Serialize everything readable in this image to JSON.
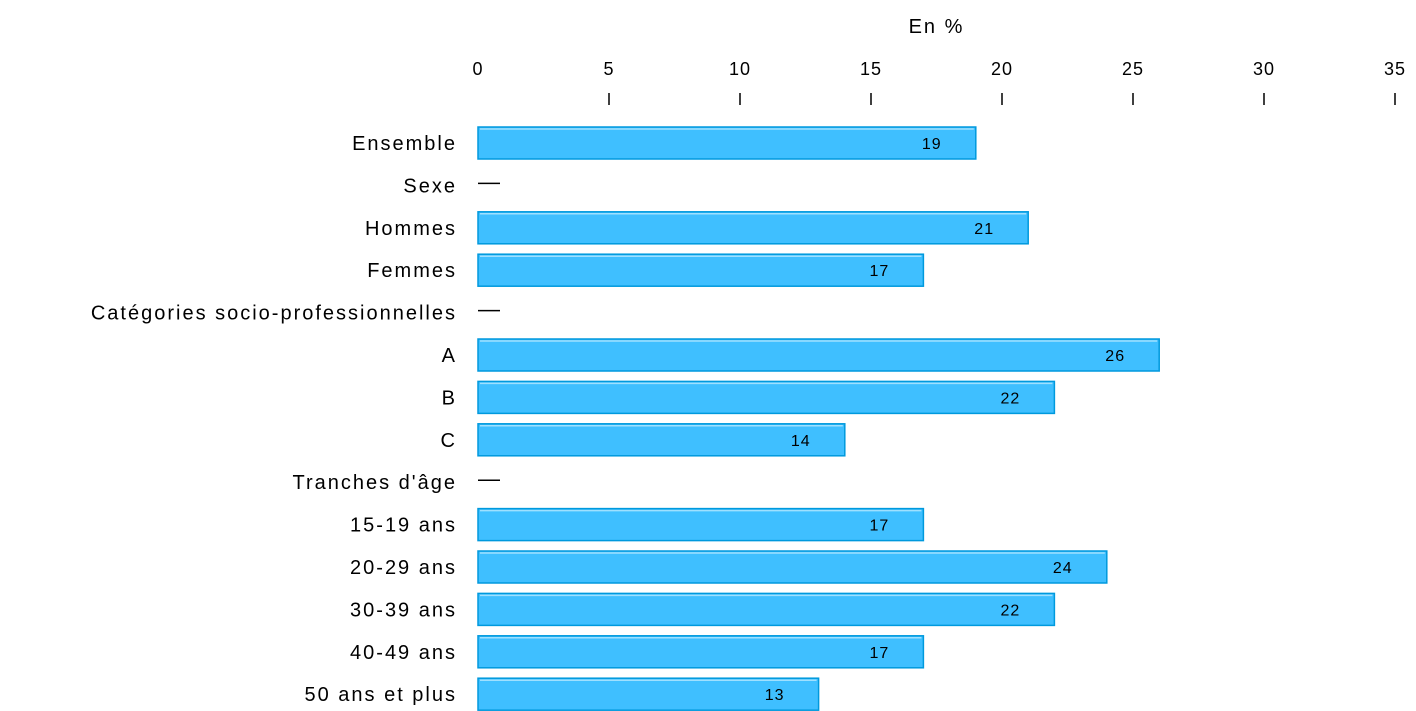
{
  "chart_data": {
    "type": "bar",
    "orientation": "horizontal",
    "title": "",
    "xlabel": "En %",
    "ylabel": "",
    "xlim": [
      0,
      35
    ],
    "xticks": [
      0,
      5,
      10,
      15,
      20,
      25,
      30,
      35
    ],
    "tick_labels": [
      "0",
      "5",
      "10",
      "15",
      "20",
      "25",
      "30",
      "35"
    ],
    "axis_position": "top",
    "grid": false,
    "legend": "none",
    "bar_color": "#3FBFFF",
    "bar_edge_color": "#0099DD",
    "categories": [
      "Ensemble",
      "Sexe",
      "Hommes",
      "Femmes",
      "Catégories socio-professionnelles",
      "A",
      "B",
      "C",
      "Tranches d'âge",
      "15-19 ans",
      "20-29 ans",
      "30-39 ans",
      "40-49 ans",
      "50 ans et plus"
    ],
    "values": [
      19,
      null,
      21,
      17,
      null,
      26,
      22,
      14,
      null,
      17,
      24,
      22,
      17,
      13
    ],
    "value_labels": [
      "19",
      "—",
      "21",
      "17",
      "—",
      "26",
      "22",
      "14",
      "—",
      "17",
      "24",
      "22",
      "17",
      "13"
    ]
  }
}
